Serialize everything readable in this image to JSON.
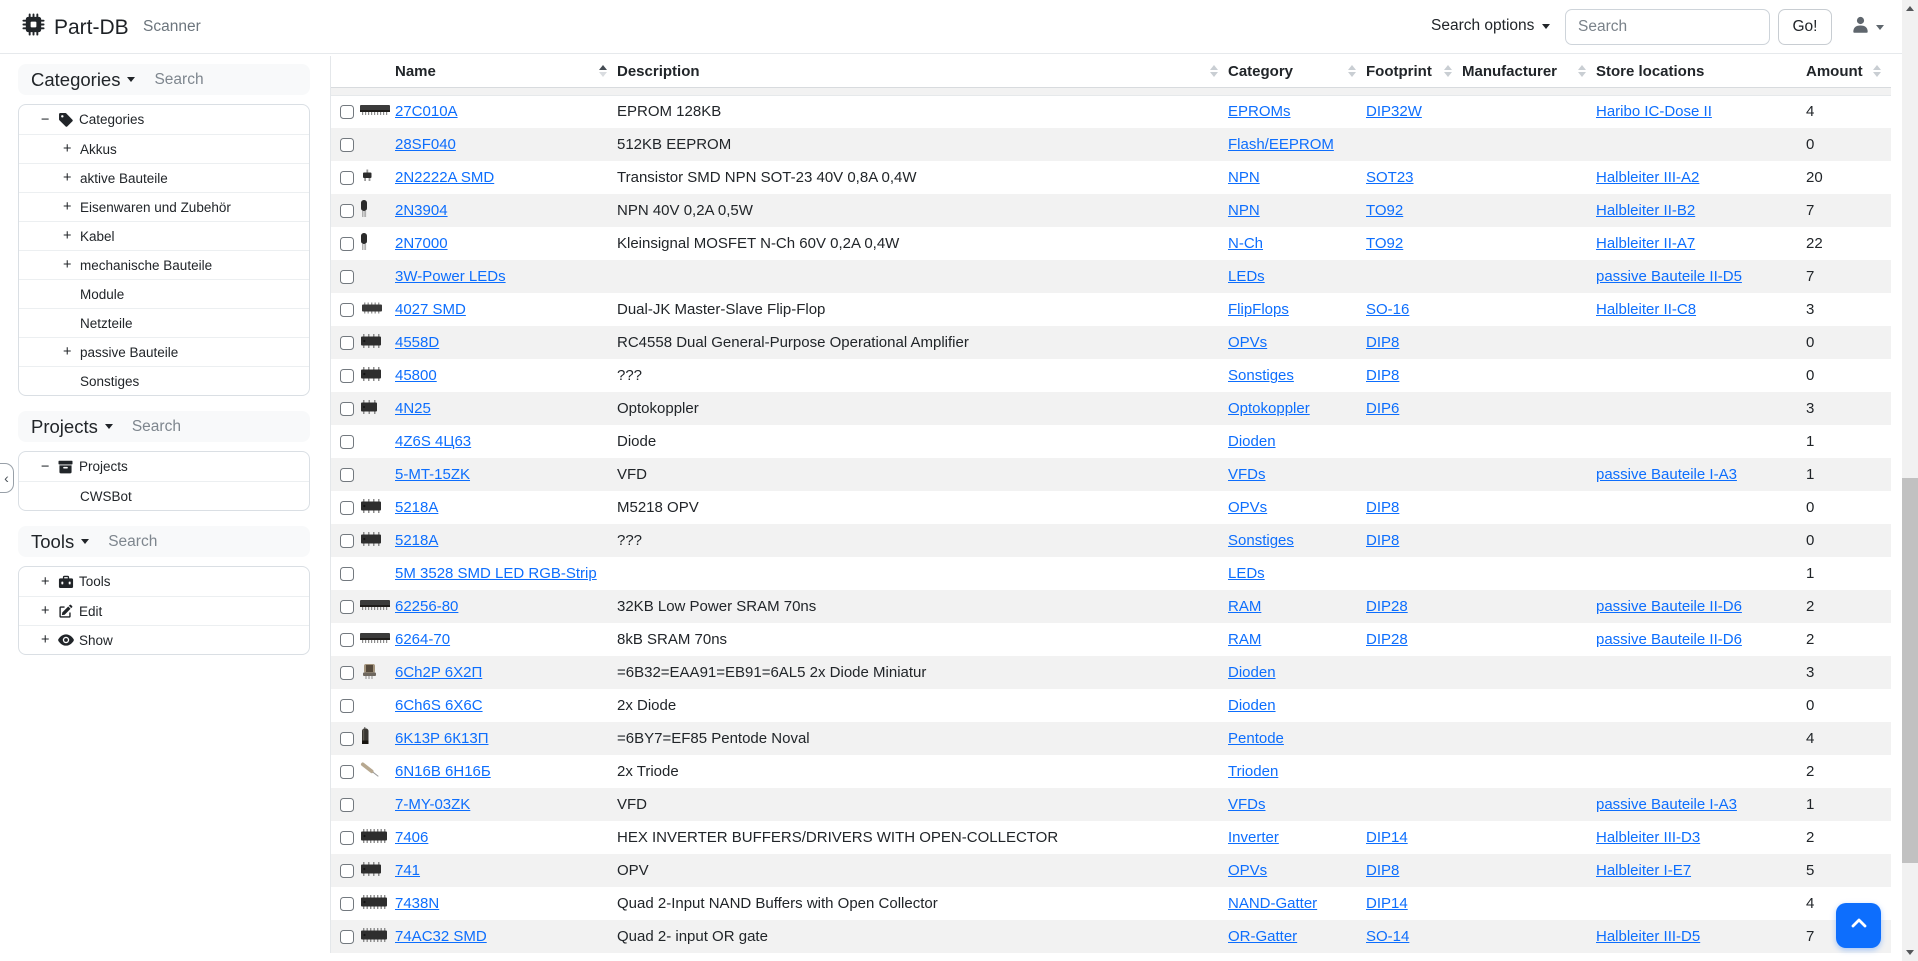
{
  "navbar": {
    "brand": "Part-DB",
    "scanner_label": "Scanner",
    "search_options_label": "Search options",
    "search_placeholder": "Search",
    "go_label": "Go!"
  },
  "sidebar": {
    "panels": [
      {
        "id": "categories",
        "title": "Categories",
        "search_placeholder": "Search",
        "items": [
          {
            "toggle": "minus",
            "icon": "tag-icon",
            "label": "Categories",
            "level": 0
          },
          {
            "toggle": "plus",
            "label": "Akkus",
            "level": 1
          },
          {
            "toggle": "plus",
            "label": "aktive Bauteile",
            "level": 1
          },
          {
            "toggle": "plus",
            "label": "Eisenwaren und Zubehör",
            "level": 1
          },
          {
            "toggle": "plus",
            "label": "Kabel",
            "level": 1
          },
          {
            "toggle": "plus",
            "label": "mechanische Bauteile",
            "level": 1
          },
          {
            "label": "Module",
            "level": 1
          },
          {
            "label": "Netzteile",
            "level": 1
          },
          {
            "toggle": "plus",
            "label": "passive Bauteile",
            "level": 1
          },
          {
            "label": "Sonstiges",
            "level": 1
          }
        ]
      },
      {
        "id": "projects",
        "title": "Projects",
        "search_placeholder": "Search",
        "items": [
          {
            "toggle": "minus",
            "icon": "archive-icon",
            "label": "Projects",
            "level": 0
          },
          {
            "label": "CWSBot",
            "level": 1
          }
        ]
      },
      {
        "id": "tools",
        "title": "Tools",
        "search_placeholder": "Search",
        "items": [
          {
            "toggle": "plus",
            "icon": "toolbox-icon",
            "label": "Tools",
            "level": 0
          },
          {
            "toggle": "plus",
            "icon": "edit-icon",
            "label": "Edit",
            "level": 0
          },
          {
            "toggle": "plus",
            "icon": "eye-icon",
            "label": "Show",
            "level": 0
          }
        ]
      }
    ]
  },
  "table": {
    "columns": [
      {
        "label": "Name",
        "sort": "asc"
      },
      {
        "label": "Description",
        "sort": "both"
      },
      {
        "label": "Category",
        "sort": "both"
      },
      {
        "label": "Footprint",
        "sort": "both"
      },
      {
        "label": "Manufacturer",
        "sort": "both"
      },
      {
        "label": "Store locations",
        "sort": "none"
      },
      {
        "label": "Amount",
        "sort": "both"
      }
    ],
    "rows": [
      {
        "name": "27C010A",
        "image": "ic-long",
        "description": "EPROM 128KB",
        "category": "EPROMs",
        "footprint": "DIP32W",
        "manufacturer": "",
        "store_location": "Haribo IC-Dose II",
        "amount": "4"
      },
      {
        "name": "28SF040",
        "image": null,
        "description": "512KB EEPROM",
        "category": "Flash/EEPROM",
        "footprint": "",
        "manufacturer": "",
        "store_location": "",
        "amount": "0"
      },
      {
        "name": "2N2222A SMD",
        "image": "sot23",
        "description": "Transistor SMD NPN SOT-23 40V 0,8A 0,4W",
        "category": "NPN",
        "footprint": "SOT23",
        "manufacturer": "",
        "store_location": "Halbleiter III-A2",
        "amount": "20"
      },
      {
        "name": "2N3904",
        "image": "to92",
        "description": "NPN 40V 0,2A 0,5W",
        "category": "NPN",
        "footprint": "TO92",
        "manufacturer": "",
        "store_location": "Halbleiter II-B2",
        "amount": "7"
      },
      {
        "name": "2N7000",
        "image": "to92",
        "description": "Kleinsignal MOSFET N-Ch 60V 0,2A 0,4W",
        "category": "N-Ch",
        "footprint": "TO92",
        "manufacturer": "",
        "store_location": "Halbleiter II-A7",
        "amount": "22"
      },
      {
        "name": "3W-Power LEDs",
        "image": null,
        "description": "",
        "category": "LEDs",
        "footprint": "",
        "manufacturer": "",
        "store_location": "passive Bauteile II-D5",
        "amount": "7"
      },
      {
        "name": "4027 SMD",
        "image": "soic",
        "description": "Dual-JK Master-Slave Flip-Flop",
        "category": "FlipFlops",
        "footprint": "SO-16",
        "manufacturer": "",
        "store_location": "Halbleiter II-C8",
        "amount": "3"
      },
      {
        "name": "4558D",
        "image": "dip8",
        "description": "RC4558 Dual General-Purpose Operational Amplifier",
        "category": "OPVs",
        "footprint": "DIP8",
        "manufacturer": "",
        "store_location": "",
        "amount": "0"
      },
      {
        "name": "45800",
        "image": "dip8",
        "description": "???",
        "category": "Sonstiges",
        "footprint": "DIP8",
        "manufacturer": "",
        "store_location": "",
        "amount": "0"
      },
      {
        "name": "4N25",
        "image": "dip6",
        "description": "Optokoppler",
        "category": "Optokoppler",
        "footprint": "DIP6",
        "manufacturer": "",
        "store_location": "",
        "amount": "3"
      },
      {
        "name": "4Z6S 4Ц63",
        "image": null,
        "description": "Diode",
        "category": "Dioden",
        "footprint": "",
        "manufacturer": "",
        "store_location": "",
        "amount": "1"
      },
      {
        "name": "5-MT-15ZK",
        "image": null,
        "description": "VFD",
        "category": "VFDs",
        "footprint": "",
        "manufacturer": "",
        "store_location": "passive Bauteile I-A3",
        "amount": "1"
      },
      {
        "name": "5218A",
        "image": "dip8",
        "description": "M5218 OPV",
        "category": "OPVs",
        "footprint": "DIP8",
        "manufacturer": "",
        "store_location": "",
        "amount": "0"
      },
      {
        "name": "5218A",
        "image": "dip8",
        "description": "???",
        "category": "Sonstiges",
        "footprint": "DIP8",
        "manufacturer": "",
        "store_location": "",
        "amount": "0"
      },
      {
        "name": "5M 3528 SMD LED RGB-Strip",
        "image": null,
        "description": "",
        "category": "LEDs",
        "footprint": "",
        "manufacturer": "",
        "store_location": "",
        "amount": "1"
      },
      {
        "name": "62256-80",
        "image": "ic-long",
        "description": "32KB Low Power SRAM 70ns",
        "category": "RAM",
        "footprint": "DIP28",
        "manufacturer": "",
        "store_location": "passive Bauteile II-D6",
        "amount": "2"
      },
      {
        "name": "6264-70",
        "image": "ic-long",
        "description": "8kB SRAM 70ns",
        "category": "RAM",
        "footprint": "DIP28",
        "manufacturer": "",
        "store_location": "passive Bauteile II-D6",
        "amount": "2"
      },
      {
        "name": "6Ch2P 6Х2П",
        "image": "tube-s",
        "description": "=6B32=EAA91=EB91=6AL5 2x Diode Miniatur",
        "category": "Dioden",
        "footprint": "",
        "manufacturer": "",
        "store_location": "",
        "amount": "3"
      },
      {
        "name": "6Ch6S 6Х6С",
        "image": null,
        "description": "2x Diode",
        "category": "Dioden",
        "footprint": "",
        "manufacturer": "",
        "store_location": "",
        "amount": "0"
      },
      {
        "name": "6K13P 6К13П",
        "image": "tube-v",
        "description": "=6BY7=EF85 Pentode Noval",
        "category": "Pentode",
        "footprint": "",
        "manufacturer": "",
        "store_location": "",
        "amount": "4"
      },
      {
        "name": "6N16B 6Н16Б",
        "image": "tube-d",
        "description": "2x Triode",
        "category": "Trioden",
        "footprint": "",
        "manufacturer": "",
        "store_location": "",
        "amount": "2"
      },
      {
        "name": "7-MY-03ZK",
        "image": null,
        "description": "VFD",
        "category": "VFDs",
        "footprint": "",
        "manufacturer": "",
        "store_location": "passive Bauteile I-A3",
        "amount": "1"
      },
      {
        "name": "7406",
        "image": "dip14",
        "description": "HEX INVERTER BUFFERS/DRIVERS WITH OPEN-COLLECTOR",
        "category": "Inverter",
        "footprint": "DIP14",
        "manufacturer": "",
        "store_location": "Halbleiter III-D3",
        "amount": "2"
      },
      {
        "name": "741",
        "image": "dip8",
        "description": "OPV",
        "category": "OPVs",
        "footprint": "DIP8",
        "manufacturer": "",
        "store_location": "Halbleiter I-E7",
        "amount": "5"
      },
      {
        "name": "7438N",
        "image": "dip14",
        "description": "Quad 2-Input NAND Buffers with Open Collector",
        "category": "NAND-Gatter",
        "footprint": "DIP14",
        "manufacturer": "",
        "store_location": "",
        "amount": "4"
      },
      {
        "name": "74AC32 SMD",
        "image": "dip14",
        "description": "Quad 2- input OR gate",
        "category": "OR-Gatter",
        "footprint": "SO-14",
        "manufacturer": "",
        "store_location": "Halbleiter III-D5",
        "amount": "7"
      }
    ]
  },
  "fab": {
    "icon": "chevron-up-icon"
  },
  "colors": {
    "link": "#0d6efd",
    "primary": "#0d6efd",
    "stripe": "#f2f2f2"
  }
}
